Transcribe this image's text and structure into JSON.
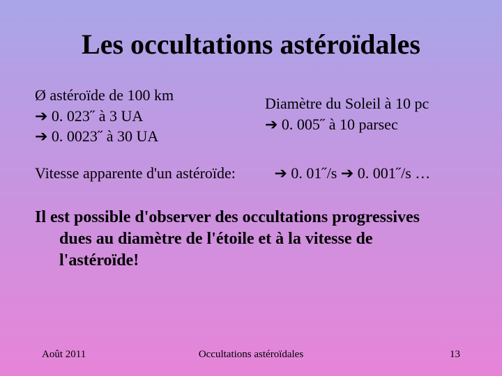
{
  "slide": {
    "title": "Les occultations astéroïdales",
    "background_gradient": [
      "#a9a5e8",
      "#c894e0",
      "#e784d8"
    ],
    "title_fontsize": 40,
    "body_fontsize": 22,
    "bold_fontsize": 24,
    "footer_fontsize": 15
  },
  "left_block": {
    "line1": " Ø astéroïde de 100 km",
    "line2": "➔ 0. 023˝ à 3 UA",
    "line3": "➔ 0. 0023˝ à 30 UA"
  },
  "right_block": {
    "line1": "Diamètre du Soleil à 10 pc",
    "line2": " ➔ 0. 005˝ à 10 parsec"
  },
  "vitesse": {
    "label": "Vitesse apparente d'un astéroïde:",
    "values": "➔ 0. 01˝/s ➔ 0. 001˝/s …"
  },
  "conclusion": {
    "line1": "Il est possible d'observer des occultations progressives",
    "line2": "dues au diamètre de l'étoile et à la vitesse de",
    "line3": "l'astéroïde!"
  },
  "footer": {
    "date": "Août 2011",
    "center": "Occultations astéroïdales",
    "page": "13"
  }
}
